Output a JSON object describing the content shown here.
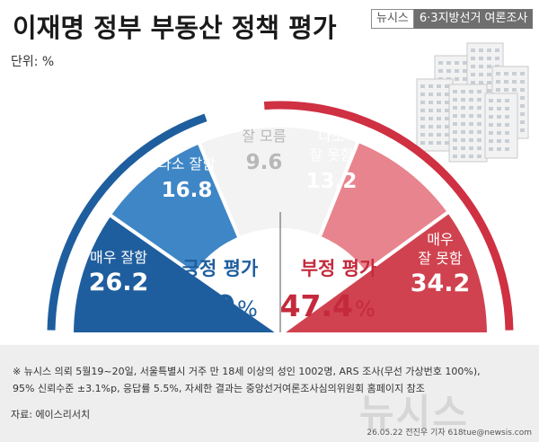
{
  "title": "이재명 정부 부동산 정책 평가",
  "unit_label": "단위:  %",
  "brand": {
    "name": "뉴시스",
    "tag": "6·3지방선거 여론조사"
  },
  "colors": {
    "positive_dark": "#1f5e9e",
    "positive_light": "#3f86c6",
    "neutral": "#f3f3f3",
    "negative_light": "#e8848e",
    "negative_dark": "#d0424f",
    "arc_positive": "#1f5e9e",
    "arc_negative": "#cf3042"
  },
  "summary": {
    "positive": {
      "label": "긍정 평가",
      "value": "43.0",
      "unit": "%"
    },
    "negative": {
      "label": "부정 평가",
      "value": "47.4",
      "unit": "%"
    }
  },
  "chart_data": {
    "type": "pie",
    "title": "이재명 정부 부동산 정책 평가",
    "unit": "%",
    "categories": [
      "매우 잘함",
      "다소 잘함",
      "잘 모름",
      "다소 잘 못함",
      "매우 잘 못함"
    ],
    "values": [
      26.2,
      16.8,
      9.6,
      13.2,
      34.2
    ],
    "labels": [
      {
        "lines": [
          "매우 잘함"
        ],
        "value": "26.2"
      },
      {
        "lines": [
          "다소 잘함"
        ],
        "value": "16.8"
      },
      {
        "lines": [
          "잘 모름"
        ],
        "value": "9.6"
      },
      {
        "lines": [
          "다소",
          "잘 못함"
        ],
        "value": "13.2"
      },
      {
        "lines": [
          "매우",
          "잘 못함"
        ],
        "value": "34.2"
      }
    ],
    "groups": [
      {
        "name": "긍정 평가",
        "value": 43.0
      },
      {
        "name": "부정 평가",
        "value": 47.4
      }
    ]
  },
  "footnote": [
    "※ 뉴시스 의뢰 5월19~20일, 서울특별시 거주 만 18세 이상의 성인 1002명, ARS 조사(무선 가상번호 100%),",
    "95% 신뢰수준 ±3.1%p, 응답률 5.5%, 자세한 결과는 중앙선거여론조사심의위원회 홈페이지 참조"
  ],
  "source": "자료: 에이스리서치",
  "credit": "26.05.22  전진우 기자  618tue@newsis.com",
  "watermark": "뉴시스"
}
